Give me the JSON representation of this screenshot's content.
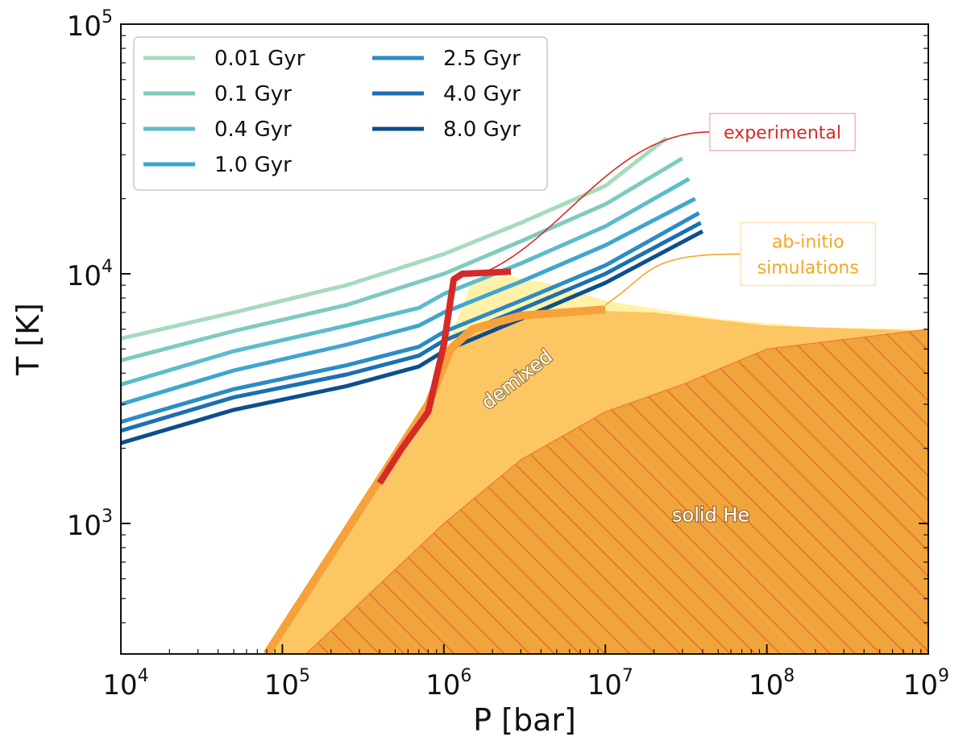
{
  "chart_data": {
    "type": "line",
    "xlabel": "P [bar]",
    "ylabel": "T [K]",
    "xscale": "log",
    "yscale": "log",
    "xlim": [
      10000,
      1000000000
    ],
    "ylim": [
      300,
      100000
    ],
    "x_ticks": [
      {
        "base": "10",
        "exp": "4",
        "value": 10000
      },
      {
        "base": "10",
        "exp": "5",
        "value": 100000
      },
      {
        "base": "10",
        "exp": "6",
        "value": 1000000
      },
      {
        "base": "10",
        "exp": "7",
        "value": 10000000
      },
      {
        "base": "10",
        "exp": "8",
        "value": 100000000
      },
      {
        "base": "10",
        "exp": "9",
        "value": 1000000000
      }
    ],
    "y_ticks": [
      {
        "base": "10",
        "exp": "3",
        "value": 1000
      },
      {
        "base": "10",
        "exp": "4",
        "value": 10000
      },
      {
        "base": "10",
        "exp": "5",
        "value": 100000
      }
    ],
    "legend_position": "top-left",
    "legend_columns": 2,
    "series": [
      {
        "name": "0.01 Gyr",
        "color": "#a6dbbd",
        "points": [
          [
            10000,
            5500
          ],
          [
            50000,
            7000
          ],
          [
            250000,
            9000
          ],
          [
            1000000,
            12000
          ],
          [
            3000000,
            16000
          ],
          [
            10000000,
            22500
          ],
          [
            24000000,
            35000
          ]
        ]
      },
      {
        "name": "0.1 Gyr",
        "color": "#7fcbbd",
        "points": [
          [
            10000,
            4500
          ],
          [
            50000,
            5900
          ],
          [
            250000,
            7500
          ],
          [
            1000000,
            10000
          ],
          [
            3000000,
            13500
          ],
          [
            10000000,
            19000
          ],
          [
            30000000,
            29000
          ]
        ]
      },
      {
        "name": "0.4 Gyr",
        "color": "#5cbccc",
        "points": [
          [
            10000,
            3600
          ],
          [
            50000,
            4900
          ],
          [
            250000,
            6200
          ],
          [
            700000,
            7300
          ],
          [
            1000000,
            8300
          ],
          [
            3000000,
            11000
          ],
          [
            10000000,
            15500
          ],
          [
            33000000,
            24000
          ]
        ]
      },
      {
        "name": "1.0 Gyr",
        "color": "#3fa5cf",
        "points": [
          [
            10000,
            3000
          ],
          [
            50000,
            4100
          ],
          [
            250000,
            5200
          ],
          [
            700000,
            6200
          ],
          [
            1000000,
            7000
          ],
          [
            3000000,
            9300
          ],
          [
            10000000,
            13000
          ],
          [
            36000000,
            20000
          ]
        ]
      },
      {
        "name": "2.5 Gyr",
        "color": "#2b8cc4",
        "points": [
          [
            10000,
            2550
          ],
          [
            50000,
            3450
          ],
          [
            250000,
            4300
          ],
          [
            700000,
            5100
          ],
          [
            1000000,
            5850
          ],
          [
            3000000,
            7800
          ],
          [
            10000000,
            10800
          ],
          [
            38000000,
            17500
          ]
        ]
      },
      {
        "name": "4.0 Gyr",
        "color": "#1c70b2",
        "points": [
          [
            10000,
            2350
          ],
          [
            50000,
            3200
          ],
          [
            250000,
            3950
          ],
          [
            700000,
            4700
          ],
          [
            1000000,
            5400
          ],
          [
            3000000,
            7200
          ],
          [
            10000000,
            10000
          ],
          [
            39000000,
            16000
          ]
        ]
      },
      {
        "name": "8.0 Gyr",
        "color": "#0d4f8c",
        "points": [
          [
            10000,
            2100
          ],
          [
            50000,
            2850
          ],
          [
            250000,
            3550
          ],
          [
            700000,
            4250
          ],
          [
            1000000,
            4900
          ],
          [
            3000000,
            6600
          ],
          [
            10000000,
            9200
          ],
          [
            40000000,
            14800
          ]
        ]
      }
    ],
    "regions": [
      {
        "name": "demixed",
        "label": "demixed",
        "color": "#fff2a8",
        "points": [
          [
            80000,
            300
          ],
          [
            400000,
            1500
          ],
          [
            800000,
            3000
          ],
          [
            1100000,
            5500
          ],
          [
            1500000,
            9500
          ],
          [
            2500000,
            9800
          ],
          [
            5000000,
            9000
          ],
          [
            10000000,
            7800
          ],
          [
            50000000,
            6600
          ],
          [
            200000000,
            6100
          ],
          [
            1000000000,
            6000
          ],
          [
            1000000000,
            300
          ]
        ]
      },
      {
        "name": "ab-initio demixing",
        "color": "#fcc662",
        "points": [
          [
            80000,
            300
          ],
          [
            400000,
            1500
          ],
          [
            800000,
            3000
          ],
          [
            1100000,
            5000
          ],
          [
            1500000,
            6000
          ],
          [
            3000000,
            6800
          ],
          [
            10000000,
            7100
          ],
          [
            20000000,
            7000
          ],
          [
            100000000,
            6200
          ],
          [
            1000000000,
            5900
          ],
          [
            1000000000,
            300
          ]
        ]
      },
      {
        "name": "solid He",
        "label": "solid He",
        "color": "#f0a43c",
        "hatch": "#e8672a",
        "points": [
          [
            140000,
            300
          ],
          [
            1000000,
            1000
          ],
          [
            3000000,
            1800
          ],
          [
            10000000,
            2800
          ],
          [
            30000000,
            3600
          ],
          [
            100000000,
            5000
          ],
          [
            1000000000,
            6000
          ],
          [
            1000000000,
            300
          ]
        ]
      }
    ],
    "boundaries": [
      {
        "name": "ab-initio boundary",
        "color": "#f7a13a",
        "width": 10,
        "points": [
          [
            80000,
            300
          ],
          [
            400000,
            1500
          ],
          [
            800000,
            3000
          ],
          [
            1100000,
            5000
          ],
          [
            1500000,
            6000
          ],
          [
            3000000,
            6800
          ],
          [
            10000000,
            7200
          ]
        ]
      },
      {
        "name": "experimental boundary",
        "color": "#d62a26",
        "width": 8,
        "points": [
          [
            400000,
            1450
          ],
          [
            550000,
            2000
          ],
          [
            800000,
            2800
          ],
          [
            1000000,
            5200
          ],
          [
            1150000,
            9500
          ],
          [
            1300000,
            10000
          ],
          [
            2600000,
            10200
          ]
        ]
      }
    ],
    "annotations": [
      {
        "text": "experimental",
        "color": "#d62a26",
        "box_border": "#f4b6b4",
        "target": [
          1700000,
          10000
        ],
        "anchor_x": 125000000,
        "anchor_y": 37000
      },
      {
        "text_lines": [
          "ab-initio",
          "simulations"
        ],
        "color": "#f5a623",
        "box_border": "#fde3b4",
        "target": [
          10000000,
          7500
        ],
        "anchor_x": 180000000,
        "anchor_y": 12000
      }
    ]
  }
}
